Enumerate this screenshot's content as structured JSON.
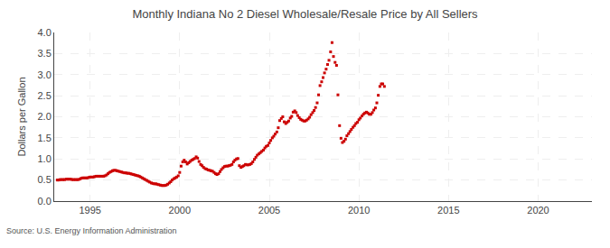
{
  "chart_data": {
    "type": "scatter",
    "title": "Monthly Indiana No 2 Diesel Wholesale/Resale Price by All Sellers",
    "ylabel": "Dollars per Gallon",
    "annotations": [
      "Source: U.S. Energy Information Administration"
    ],
    "color": "#cc0000",
    "marker": "square",
    "grid": true,
    "xlim": [
      1993.0,
      2023.0
    ],
    "ylim": [
      0.0,
      4.0
    ],
    "xticks": [
      1995,
      2000,
      2005,
      2010,
      2015,
      2020
    ],
    "yticks": [
      {
        "value": 0,
        "label": "0.0"
      },
      0.5,
      {
        "value": 1,
        "label": "1.0"
      },
      1.5,
      {
        "value": 2,
        "label": "2.0"
      },
      2.5,
      {
        "value": 3,
        "label": "3.0"
      },
      3.5,
      {
        "value": 4,
        "label": "4.0"
      }
    ],
    "x": [
      1993.17,
      1993.25,
      1993.33,
      1993.42,
      1993.5,
      1993.58,
      1993.67,
      1993.75,
      1993.83,
      1993.92,
      1994.0,
      1994.08,
      1994.17,
      1994.25,
      1994.33,
      1994.42,
      1994.5,
      1994.58,
      1994.67,
      1994.75,
      1994.83,
      1994.92,
      1995.0,
      1995.08,
      1995.17,
      1995.25,
      1995.33,
      1995.42,
      1995.5,
      1995.58,
      1995.67,
      1995.75,
      1995.83,
      1995.92,
      1996.0,
      1996.08,
      1996.17,
      1996.25,
      1996.33,
      1996.42,
      1996.5,
      1996.58,
      1996.67,
      1996.75,
      1996.83,
      1996.92,
      1997.0,
      1997.08,
      1997.17,
      1997.25,
      1997.33,
      1997.42,
      1997.5,
      1997.58,
      1997.67,
      1997.75,
      1997.83,
      1997.92,
      1998.0,
      1998.08,
      1998.17,
      1998.25,
      1998.33,
      1998.42,
      1998.5,
      1998.58,
      1998.67,
      1998.75,
      1998.83,
      1998.92,
      1999.0,
      1999.08,
      1999.17,
      1999.25,
      1999.33,
      1999.42,
      1999.5,
      1999.58,
      1999.67,
      1999.75,
      1999.83,
      1999.92,
      2000.0,
      2000.08,
      2000.17,
      2000.25,
      2000.33,
      2000.42,
      2000.5,
      2000.58,
      2000.67,
      2000.75,
      2000.83,
      2000.92,
      2001.0,
      2001.08,
      2001.17,
      2001.25,
      2001.33,
      2001.42,
      2001.5,
      2001.58,
      2001.67,
      2001.75,
      2001.83,
      2001.92,
      2002.0,
      2002.08,
      2002.17,
      2002.25,
      2002.33,
      2002.42,
      2002.5,
      2002.58,
      2002.67,
      2002.75,
      2002.83,
      2002.92,
      2003.0,
      2003.08,
      2003.17,
      2003.25,
      2003.33,
      2003.42,
      2003.5,
      2003.58,
      2003.67,
      2003.75,
      2003.83,
      2003.92,
      2004.0,
      2004.08,
      2004.17,
      2004.25,
      2004.33,
      2004.42,
      2004.5,
      2004.58,
      2004.67,
      2004.75,
      2004.83,
      2004.92,
      2005.0,
      2005.08,
      2005.17,
      2005.25,
      2005.33,
      2005.42,
      2005.5,
      2005.58,
      2005.67,
      2005.75,
      2005.83,
      2005.92,
      2006.0,
      2006.08,
      2006.17,
      2006.25,
      2006.33,
      2006.42,
      2006.5,
      2006.58,
      2006.67,
      2006.75,
      2006.83,
      2006.92,
      2007.0,
      2007.08,
      2007.17,
      2007.25,
      2007.33,
      2007.42,
      2007.5,
      2007.58,
      2007.67,
      2007.75,
      2007.83,
      2007.92,
      2008.0,
      2008.08,
      2008.17,
      2008.25,
      2008.33,
      2008.42,
      2008.5,
      2008.58,
      2008.67,
      2008.75,
      2008.83,
      2008.92,
      2009.0,
      2009.08,
      2009.17,
      2009.25,
      2009.33,
      2009.42,
      2009.5,
      2009.58,
      2009.67,
      2009.75,
      2009.83,
      2009.92,
      2010.0,
      2010.08,
      2010.17,
      2010.25,
      2010.33,
      2010.42,
      2010.5,
      2010.58,
      2010.67,
      2010.75,
      2010.83,
      2010.92,
      2011.0,
      2011.08,
      2011.17,
      2011.25,
      2011.33,
      2011.42
    ],
    "values": [
      0.5,
      0.5,
      0.51,
      0.51,
      0.51,
      0.51,
      0.52,
      0.52,
      0.52,
      0.52,
      0.51,
      0.51,
      0.51,
      0.51,
      0.51,
      0.52,
      0.54,
      0.55,
      0.55,
      0.55,
      0.55,
      0.56,
      0.57,
      0.57,
      0.57,
      0.58,
      0.59,
      0.59,
      0.59,
      0.59,
      0.59,
      0.59,
      0.6,
      0.62,
      0.65,
      0.68,
      0.7,
      0.72,
      0.73,
      0.73,
      0.72,
      0.71,
      0.7,
      0.69,
      0.68,
      0.67,
      0.67,
      0.66,
      0.66,
      0.65,
      0.64,
      0.63,
      0.62,
      0.61,
      0.6,
      0.59,
      0.57,
      0.55,
      0.53,
      0.51,
      0.49,
      0.47,
      0.45,
      0.43,
      0.42,
      0.41,
      0.41,
      0.4,
      0.39,
      0.38,
      0.37,
      0.37,
      0.37,
      0.38,
      0.4,
      0.43,
      0.46,
      0.5,
      0.53,
      0.55,
      0.57,
      0.6,
      0.68,
      0.83,
      0.93,
      0.97,
      0.93,
      0.88,
      0.91,
      0.94,
      0.97,
      0.99,
      1.01,
      1.05,
      1.02,
      0.94,
      0.87,
      0.84,
      0.8,
      0.77,
      0.76,
      0.74,
      0.73,
      0.72,
      0.71,
      0.68,
      0.65,
      0.63,
      0.65,
      0.7,
      0.75,
      0.79,
      0.82,
      0.83,
      0.83,
      0.84,
      0.85,
      0.87,
      0.93,
      0.97,
      1.0,
      1.01,
      0.84,
      0.8,
      0.82,
      0.84,
      0.87,
      0.86,
      0.86,
      0.87,
      0.89,
      0.93,
      0.99,
      1.04,
      1.09,
      1.12,
      1.15,
      1.18,
      1.21,
      1.26,
      1.3,
      1.32,
      1.38,
      1.44,
      1.5,
      1.54,
      1.59,
      1.64,
      1.74,
      1.91,
      1.96,
      2.0,
      1.88,
      1.84,
      1.87,
      1.9,
      1.97,
      2.01,
      2.11,
      2.14,
      2.1,
      2.03,
      1.98,
      1.94,
      1.92,
      1.9,
      1.9,
      1.92,
      1.95,
      1.99,
      2.05,
      2.1,
      2.15,
      2.22,
      2.33,
      2.52,
      2.74,
      2.83,
      2.93,
      3.04,
      3.13,
      3.24,
      3.34,
      3.54,
      3.76,
      3.43,
      3.29,
      3.22,
      2.52,
      1.79,
      1.49,
      1.39,
      1.42,
      1.47,
      1.55,
      1.6,
      1.65,
      1.7,
      1.75,
      1.79,
      1.84,
      1.87,
      1.93,
      1.97,
      2.02,
      2.06,
      2.09,
      2.11,
      2.09,
      2.06,
      2.06,
      2.1,
      2.16,
      2.21,
      2.33,
      2.51,
      2.72,
      2.78,
      2.78,
      2.72
    ]
  }
}
